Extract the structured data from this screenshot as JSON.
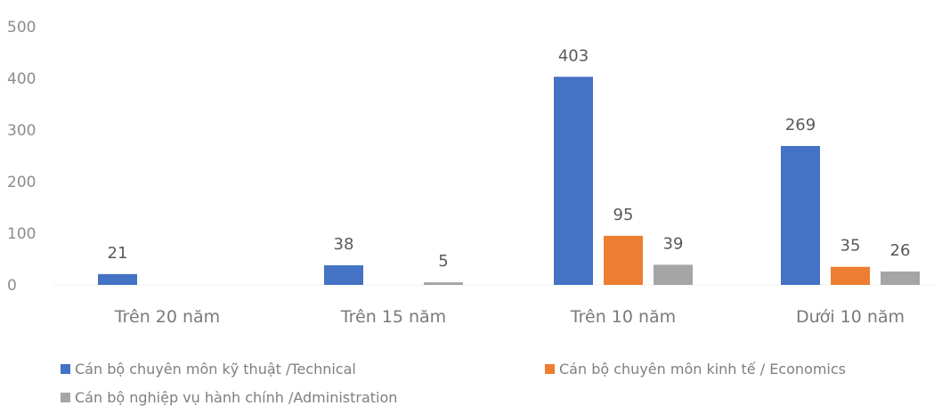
{
  "chart_data": {
    "type": "bar",
    "categories": [
      "Trên 20 năm",
      "Trên 15 năm",
      "Trên 10 năm",
      "Dưới 10 năm"
    ],
    "series": [
      {
        "name": "Cán bộ chuyên môn kỹ thuật /Technical",
        "values": [
          21,
          38,
          403,
          269
        ],
        "color": "#4472c4"
      },
      {
        "name": "Cán bộ chuyên môn kinh tế / Economics",
        "values": [
          null,
          null,
          95,
          35
        ],
        "color": "#ed7d31"
      },
      {
        "name": "Cán bộ nghiệp vụ hành chính /Administration",
        "values": [
          null,
          5,
          39,
          26
        ],
        "color": "#a5a5a5"
      }
    ],
    "ylim": [
      0,
      500
    ],
    "yticks": [
      0,
      100,
      200,
      300,
      400,
      500
    ],
    "title": "",
    "xlabel": "",
    "ylabel": "",
    "grid": false,
    "legend_position": "bottom"
  }
}
